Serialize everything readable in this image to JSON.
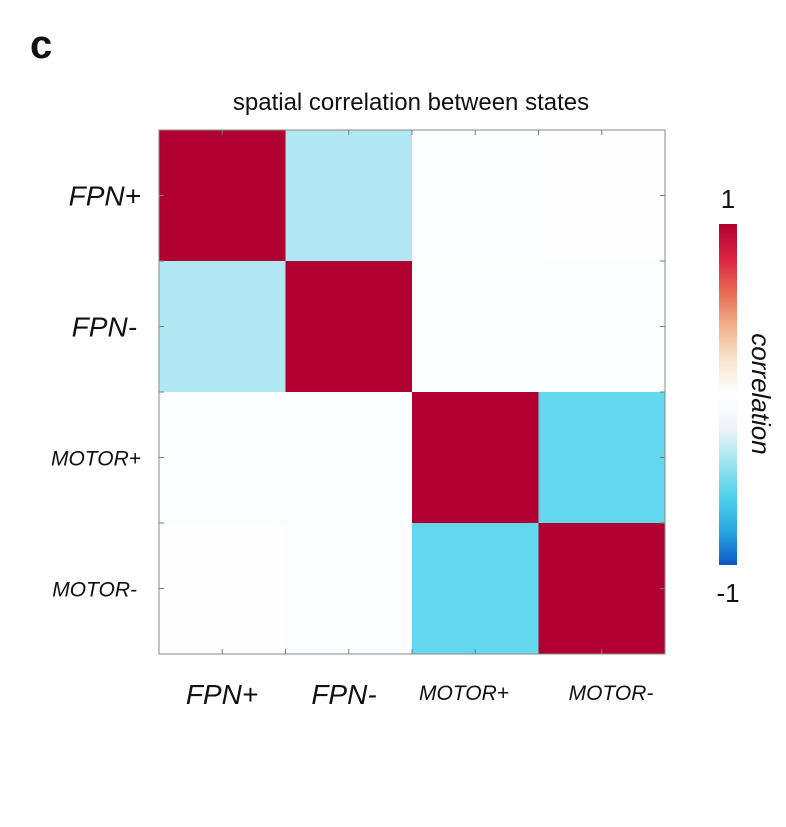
{
  "panel_label": "c",
  "chart_data": {
    "type": "heatmap",
    "title": "spatial correlation between states",
    "xlabel": "",
    "ylabel": "",
    "x_categories": [
      "FPN+",
      "FPN-",
      "MOTOR+",
      "MOTOR-"
    ],
    "y_categories": [
      "FPN+",
      "FPN-",
      "MOTOR+",
      "MOTOR-"
    ],
    "values": [
      [
        1.0,
        -0.35,
        -0.02,
        -0.01
      ],
      [
        -0.35,
        1.0,
        -0.03,
        -0.03
      ],
      [
        -0.03,
        -0.03,
        1.0,
        -0.55
      ],
      [
        -0.01,
        -0.03,
        -0.55,
        1.0
      ]
    ],
    "colorbar": {
      "label": "correlation",
      "min": -1,
      "max": 1,
      "min_label": "-1",
      "max_label": "1",
      "colors": [
        "#0a58c4",
        "#2aa8e0",
        "#4fd2ec",
        "#9ee4f0",
        "#eef3fa",
        "#ffffff",
        "#f9e4d0",
        "#f2b28a",
        "#e76a54",
        "#dc2342",
        "#b00032"
      ]
    },
    "grid": true,
    "legend": "right"
  }
}
